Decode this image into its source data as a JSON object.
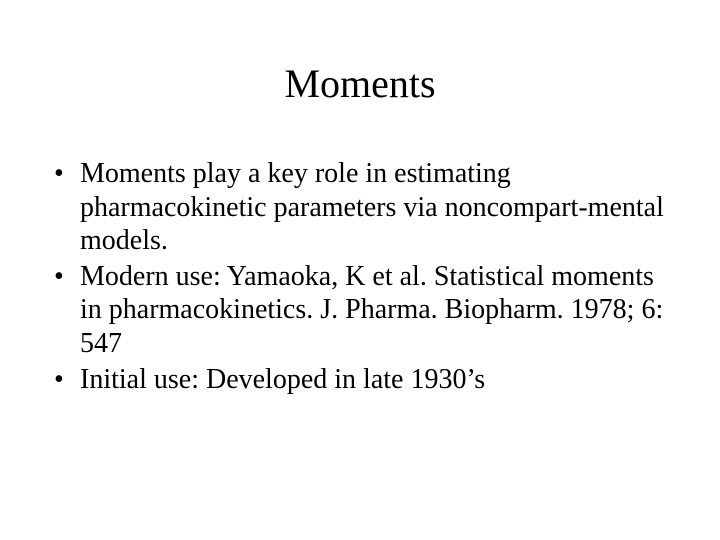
{
  "slide": {
    "title": "Moments",
    "bullets": [
      "Moments play a key role in estimating pharmacokinetic parameters via noncompart-mental models.",
      "Modern use:  Yamaoka, K et al.  Statistical moments in pharmacokinetics.  J. Pharma. Biopharm. 1978; 6: 547",
      "Initial use:  Developed in late 1930’s"
    ],
    "title_fontsize": 40,
    "body_fontsize": 28,
    "font_family": "Times New Roman",
    "text_color": "#000000",
    "background_color": "#ffffff"
  }
}
